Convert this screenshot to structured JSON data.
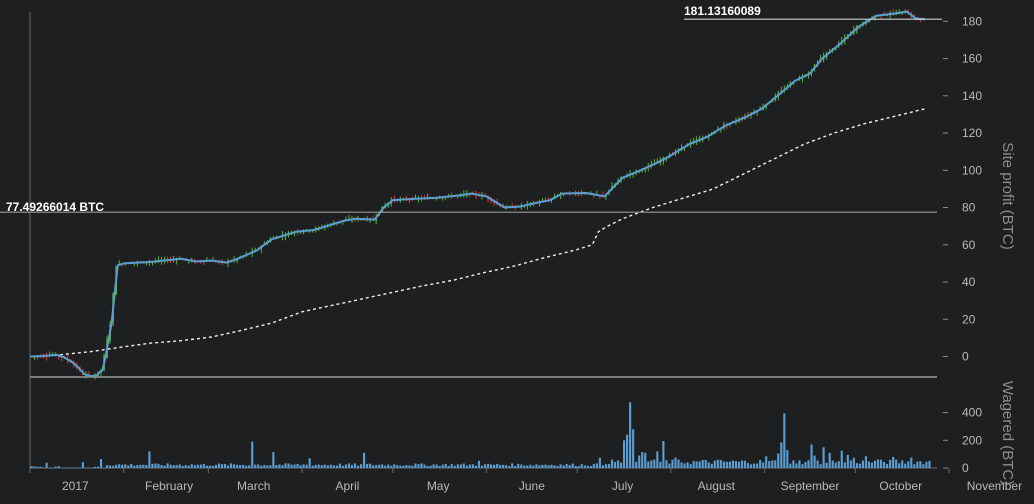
{
  "chart_data": [
    {
      "type": "candlestick",
      "title": "",
      "xlabel": "",
      "ylabel": "Site profit (BTC)",
      "ylim": [
        -11,
        185
      ],
      "y_ticks": [
        0,
        20,
        40,
        60,
        80,
        100,
        120,
        140,
        160,
        180
      ],
      "x_ticks": [
        "2017",
        "February",
        "March",
        "April",
        "May",
        "June",
        "July",
        "August",
        "September",
        "October",
        "November"
      ],
      "grid": false,
      "candle_colors": {
        "up": "#55b22f",
        "down": "#d13a3a"
      },
      "line_color": "#5a9fd4",
      "baseline_color": "#f0f0f0",
      "annotations": [
        {
          "label": "77.49266014 BTC",
          "value": 77.49266014
        },
        {
          "label": "181.13160089",
          "value": 181.13160089
        }
      ],
      "profit_path": [
        [
          0,
          0
        ],
        [
          4,
          0.2
        ],
        [
          8,
          0.8
        ],
        [
          9,
          0.8
        ],
        [
          11,
          -0.2
        ],
        [
          14,
          -3
        ],
        [
          16,
          -6
        ],
        [
          18,
          -9.5
        ],
        [
          20,
          -10.5
        ],
        [
          22,
          -10.2
        ],
        [
          24,
          -7
        ],
        [
          25,
          0
        ],
        [
          27,
          18
        ],
        [
          29,
          49
        ],
        [
          31,
          50
        ],
        [
          40,
          50.8
        ],
        [
          50,
          52.5
        ],
        [
          55,
          51
        ],
        [
          60,
          51.5
        ],
        [
          65,
          50.5
        ],
        [
          68,
          52
        ],
        [
          75,
          57
        ],
        [
          80,
          63
        ],
        [
          88,
          67
        ],
        [
          94,
          68
        ],
        [
          100,
          71
        ],
        [
          104,
          73
        ],
        [
          108,
          74
        ],
        [
          114,
          73.5
        ],
        [
          117,
          80
        ],
        [
          120,
          84
        ],
        [
          126,
          84.6
        ],
        [
          134,
          85.2
        ],
        [
          142,
          86.5
        ],
        [
          146,
          87.5
        ],
        [
          151,
          86
        ],
        [
          157,
          80
        ],
        [
          162,
          80.5
        ],
        [
          166,
          82
        ],
        [
          172,
          84
        ],
        [
          176,
          87.5
        ],
        [
          184,
          87.8
        ],
        [
          190,
          86
        ],
        [
          196,
          96
        ],
        [
          202,
          100
        ],
        [
          208,
          104.5
        ],
        [
          212,
          108
        ],
        [
          218,
          114
        ],
        [
          224,
          118
        ],
        [
          230,
          124
        ],
        [
          236,
          128
        ],
        [
          242,
          133
        ],
        [
          248,
          141
        ],
        [
          253,
          148
        ],
        [
          258,
          152
        ],
        [
          262,
          160
        ],
        [
          268,
          168
        ],
        [
          274,
          177
        ],
        [
          280,
          183
        ],
        [
          286,
          184.2
        ],
        [
          290,
          185.2
        ],
        [
          293,
          181.5
        ],
        [
          296,
          181
        ]
      ],
      "baseline_path": [
        [
          0,
          0
        ],
        [
          10,
          1
        ],
        [
          20,
          2.6
        ],
        [
          30,
          5
        ],
        [
          40,
          7.2
        ],
        [
          50,
          8.5
        ],
        [
          60,
          10.5
        ],
        [
          70,
          14
        ],
        [
          80,
          18
        ],
        [
          90,
          24
        ],
        [
          100,
          27.5
        ],
        [
          110,
          31
        ],
        [
          120,
          34.5
        ],
        [
          130,
          38
        ],
        [
          140,
          41
        ],
        [
          150,
          45
        ],
        [
          160,
          48.5
        ],
        [
          170,
          53
        ],
        [
          180,
          57
        ],
        [
          186,
          60
        ],
        [
          188,
          67
        ],
        [
          191,
          70
        ],
        [
          196,
          74
        ],
        [
          206,
          80
        ],
        [
          216,
          85
        ],
        [
          226,
          90
        ],
        [
          236,
          98
        ],
        [
          246,
          106
        ],
        [
          256,
          114
        ],
        [
          266,
          120
        ],
        [
          276,
          125
        ],
        [
          286,
          129
        ],
        [
          296,
          133
        ]
      ]
    },
    {
      "type": "bar",
      "title": "",
      "xlabel": "",
      "ylabel": "Wagered (BTC)",
      "ylim": [
        0,
        520
      ],
      "y_ticks": [
        0,
        200,
        400
      ],
      "bar_color": "#5a9fd4",
      "spikes": [
        {
          "day": 5,
          "value": 38
        },
        {
          "day": 17,
          "value": 42
        },
        {
          "day": 23,
          "value": 65
        },
        {
          "day": 39,
          "value": 120
        },
        {
          "day": 73,
          "value": 190
        },
        {
          "day": 80,
          "value": 115
        },
        {
          "day": 92,
          "value": 70
        },
        {
          "day": 110,
          "value": 110
        },
        {
          "day": 148,
          "value": 52
        },
        {
          "day": 188,
          "value": 75
        },
        {
          "day": 196,
          "value": 200
        },
        {
          "day": 197,
          "value": 240
        },
        {
          "day": 198,
          "value": 475
        },
        {
          "day": 199,
          "value": 280
        },
        {
          "day": 201,
          "value": 90
        },
        {
          "day": 202,
          "value": 115
        },
        {
          "day": 203,
          "value": 110
        },
        {
          "day": 205,
          "value": 55
        },
        {
          "day": 207,
          "value": 120
        },
        {
          "day": 209,
          "value": 195
        },
        {
          "day": 213,
          "value": 75
        },
        {
          "day": 243,
          "value": 85
        },
        {
          "day": 247,
          "value": 105
        },
        {
          "day": 248,
          "value": 185
        },
        {
          "day": 249,
          "value": 395
        },
        {
          "day": 250,
          "value": 130
        },
        {
          "day": 252,
          "value": 55
        },
        {
          "day": 258,
          "value": 170
        },
        {
          "day": 259,
          "value": 90
        },
        {
          "day": 262,
          "value": 150
        },
        {
          "day": 264,
          "value": 110
        },
        {
          "day": 268,
          "value": 125
        },
        {
          "day": 270,
          "value": 95
        },
        {
          "day": 272,
          "value": 75
        },
        {
          "day": 276,
          "value": 85
        },
        {
          "day": 281,
          "value": 60
        },
        {
          "day": 285,
          "value": 80
        },
        {
          "day": 291,
          "value": 75
        }
      ]
    }
  ]
}
